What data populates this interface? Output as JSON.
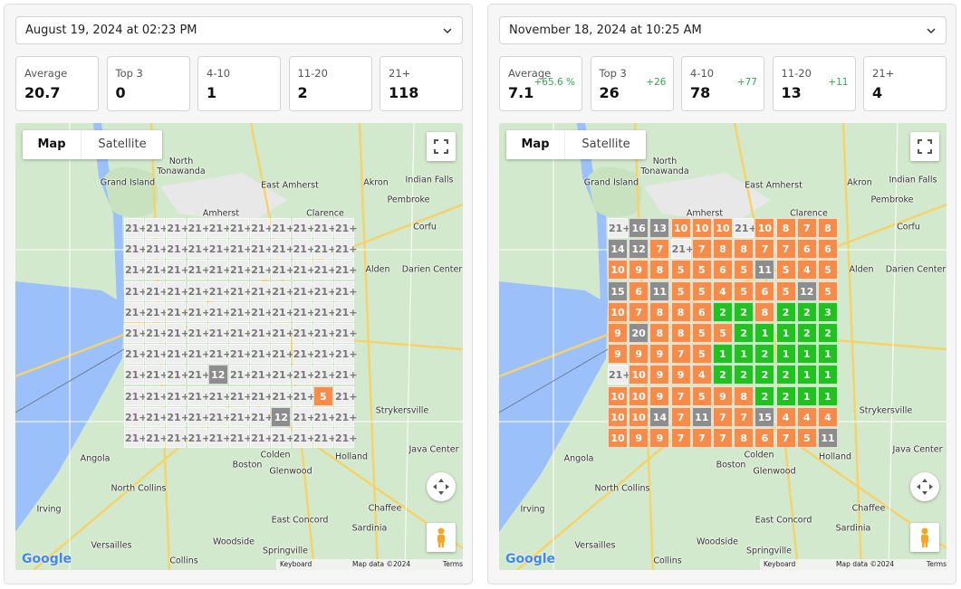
{
  "panels": [
    {
      "date": "August 19, 2024 at 02:23 PM",
      "stats": [
        {
          "label": "Average",
          "value": 20.7
        },
        {
          "label": "Top 3",
          "value": 0
        },
        {
          "label": "4-10",
          "value": 1
        },
        {
          "label": "11-20",
          "value": 2
        },
        {
          "label": "21+",
          "value": 118
        }
      ],
      "grid": [
        [
          "21+",
          "21+",
          "21+",
          "21+",
          "21+",
          "21+",
          "21+",
          "21+",
          "21+",
          "21+",
          "21+"
        ],
        [
          "21+",
          "21+",
          "21+",
          "21+",
          "21+",
          "21+",
          "21+",
          "21+",
          "21+",
          "21+",
          "21+"
        ],
        [
          "21+",
          "21+",
          "21+",
          "21+",
          "21+",
          "21+",
          "21+",
          "21+",
          "21+",
          "21+",
          "21+"
        ],
        [
          "21+",
          "21+",
          "21+",
          "21+",
          "21+",
          "21+",
          "21+",
          "21+",
          "21+",
          "21+",
          "21+"
        ],
        [
          "21+",
          "21+",
          "21+",
          "21+",
          "21+",
          "21+",
          "21+",
          "21+",
          "21+",
          "21+",
          "21+"
        ],
        [
          "21+",
          "21+",
          "21+",
          "21+",
          "21+",
          "21+",
          "21+",
          "21+",
          "21+",
          "21+",
          "21+"
        ],
        [
          "21+",
          "21+",
          "21+",
          "21+",
          "21+",
          "21+",
          "21+",
          "21+",
          "21+",
          "21+",
          "21+"
        ],
        [
          "21+",
          "21+",
          "21+",
          "21+",
          12,
          "21+",
          "21+",
          "21+",
          "21+",
          "21+",
          "21+"
        ],
        [
          "21+",
          "21+",
          "21+",
          "21+",
          "21+",
          "21+",
          "21+",
          "21+",
          "21+",
          5,
          "21+"
        ],
        [
          "21+",
          "21+",
          "21+",
          "21+",
          "21+",
          "21+",
          "21+",
          12,
          "21+",
          "21+",
          "21+"
        ],
        [
          "21+",
          "21+",
          "21+",
          "21+",
          "21+",
          "21+",
          "21+",
          "21+",
          "21+",
          "21+",
          "21+"
        ]
      ]
    },
    {
      "date": "November 18, 2024 at 10:25 AM",
      "stats": [
        {
          "label": "Average",
          "value": 7.1,
          "delta": "+65.6 %"
        },
        {
          "label": "Top 3",
          "value": 26,
          "delta": "+26"
        },
        {
          "label": "4-10",
          "value": 78,
          "delta": "+77"
        },
        {
          "label": "11-20",
          "value": 13,
          "delta": "+11"
        },
        {
          "label": "21+",
          "value": 4
        }
      ],
      "grid": [
        [
          "21+",
          16,
          13,
          10,
          10,
          10,
          "21+",
          10,
          8,
          7,
          8
        ],
        [
          14,
          12,
          7,
          "21+",
          7,
          8,
          8,
          7,
          7,
          6,
          6
        ],
        [
          10,
          9,
          8,
          5,
          5,
          6,
          5,
          11,
          5,
          4,
          5
        ],
        [
          15,
          6,
          11,
          5,
          5,
          4,
          5,
          6,
          5,
          12,
          5
        ],
        [
          10,
          7,
          8,
          8,
          6,
          2,
          2,
          8,
          2,
          2,
          3
        ],
        [
          9,
          20,
          8,
          8,
          5,
          5,
          2,
          1,
          1,
          2,
          2
        ],
        [
          9,
          9,
          9,
          7,
          5,
          1,
          1,
          2,
          1,
          1,
          1
        ],
        [
          "21+",
          10,
          9,
          9,
          4,
          2,
          2,
          2,
          2,
          1,
          1
        ],
        [
          10,
          10,
          9,
          7,
          5,
          9,
          8,
          2,
          2,
          1,
          1
        ],
        [
          10,
          10,
          14,
          7,
          11,
          7,
          7,
          15,
          4,
          4,
          4
        ],
        [
          10,
          9,
          9,
          7,
          7,
          7,
          8,
          6,
          7,
          5,
          11
        ]
      ]
    }
  ],
  "rank_colors": [
    {
      "max": 3,
      "color": "#21c121"
    },
    {
      "max": 10,
      "color": "#f68b4a"
    },
    {
      "max": 20,
      "color": "#8d8d8d"
    }
  ],
  "unranked_color": "#eeeeee",
  "map": {
    "buttons": [
      "Map",
      "Satellite"
    ],
    "logo": "Google",
    "footer": [
      "Keyboard shortcuts",
      "Map data ©2024 Google",
      "Terms"
    ],
    "labels": [
      "North Tonawanda",
      "Grand Island",
      "Amherst",
      "East Amherst",
      "Akron",
      "Indian Falls",
      "Pembroke",
      "Clarence",
      "Corfu",
      "Alden",
      "Darien Center",
      "Strykersville",
      "Holland",
      "Java Center",
      "Colden",
      "Glenwood",
      "Boston",
      "Angola",
      "North Collins",
      "Irving",
      "East Concord",
      "Chaffee",
      "Sardinia",
      "Versailles",
      "Woodside",
      "Springville",
      "Collins"
    ]
  }
}
